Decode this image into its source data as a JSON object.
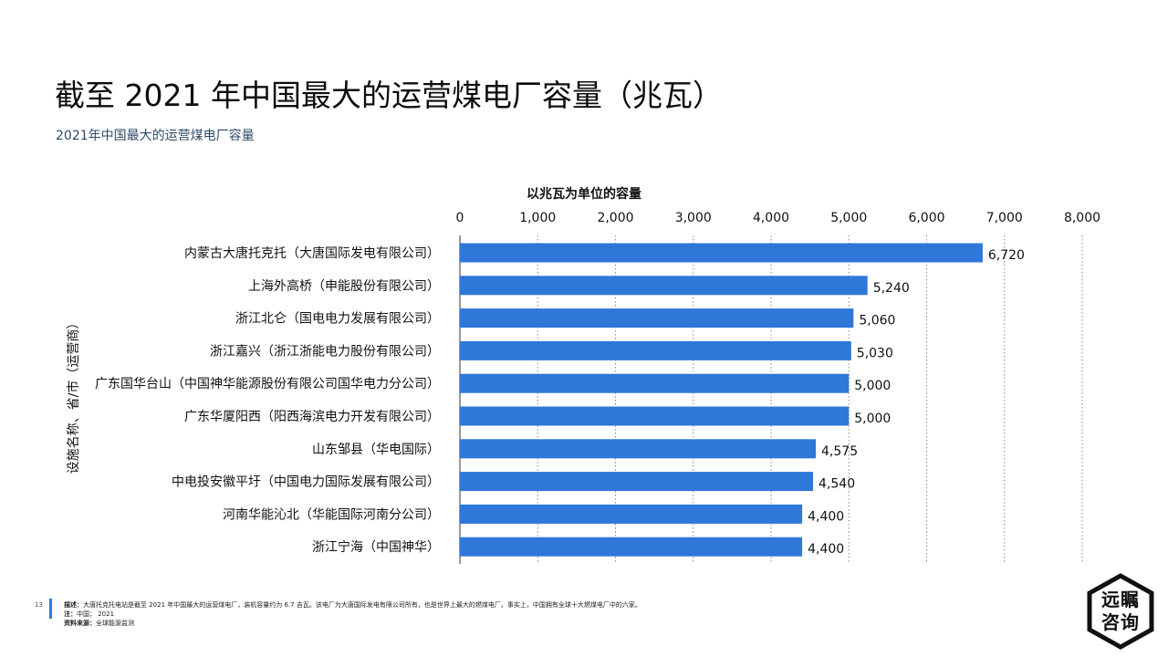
{
  "title": "截至 2021 年中国最大的运营煤电厂容量（兆瓦）",
  "subtitle": "2021年中国最大的运营煤电厂容量",
  "footer": {
    "page_number": "13",
    "description_label": "描述：",
    "description": "大唐托克托电站是截至 2021 年中国最大的运营煤电厂，装机容量约为 6.7 吉瓦。该电厂为大唐国际发电有限公司所有，也是世界上最大的燃煤电厂。事实上，中国拥有全球十大燃煤电厂中的六家。",
    "note_label": "注：",
    "note": "中国；  2021",
    "source_label": "资料来源：",
    "source": "全球能源监测"
  },
  "logo": {
    "text": "远瞩咨询"
  },
  "colors": {
    "bar": "#2f77d8",
    "subtitle": "#2d4b6b",
    "grid": "#888888"
  },
  "chart_data": {
    "type": "bar",
    "orientation": "horizontal",
    "xlabel": "以兆瓦为单位的容量",
    "ylabel": "设施名称、省/市（运营商）",
    "xlim": [
      0,
      8000
    ],
    "x_ticks": [
      0,
      1000,
      2000,
      3000,
      4000,
      5000,
      6000,
      7000,
      8000
    ],
    "x_tick_labels": [
      "0",
      "1,000",
      "2,000",
      "3,000",
      "4,000",
      "5,000",
      "6,000",
      "7,000",
      "8,000"
    ],
    "categories": [
      "内蒙古大唐托克托（大唐国际发电有限公司）",
      "上海外高桥（申能股份有限公司）",
      "浙江北仑（国电电力发展有限公司）",
      "浙江嘉兴（浙江浙能电力股份有限公司）",
      "广东国华台山（中国神华能源股份有限公司国华电力分公司）",
      "广东华厦阳西（阳西海滨电力开发有限公司）",
      "山东邹县（华电国际）",
      "中电投安徽平圩（中国电力国际发展有限公司）",
      "河南华能沁北（华能国际河南分公司）",
      "浙江宁海（中国神华）"
    ],
    "values": [
      6720,
      5240,
      5060,
      5030,
      5000,
      5000,
      4575,
      4540,
      4400,
      4400
    ],
    "value_labels": [
      "6,720",
      "5,240",
      "5,060",
      "5,030",
      "5,000",
      "5,000",
      "4,575",
      "4,540",
      "4,400",
      "4,400"
    ],
    "grid": true,
    "legend": false
  }
}
